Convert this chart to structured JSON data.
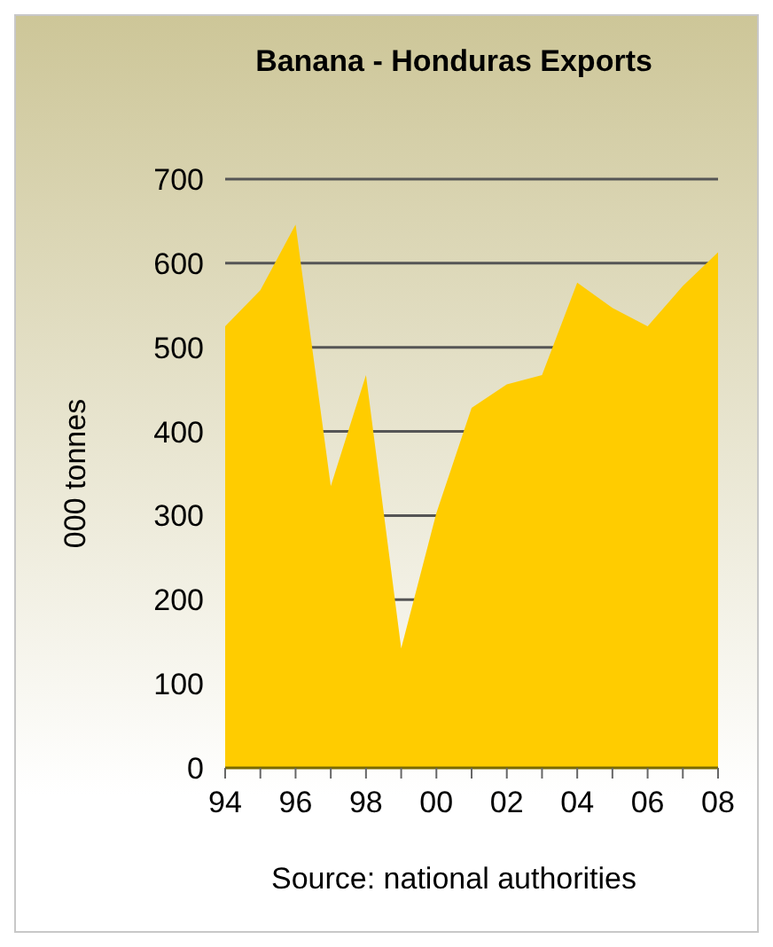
{
  "chart_data": {
    "type": "area",
    "title": "Banana - Honduras Exports",
    "ylabel": "000 tonnes",
    "categories": [
      "94",
      null,
      "96",
      null,
      "98",
      null,
      "00",
      null,
      "02",
      null,
      "04",
      null,
      "06",
      null,
      "08"
    ],
    "values": [
      525,
      568,
      646,
      335,
      467,
      142,
      303,
      428,
      456,
      467,
      577,
      547,
      525,
      573,
      613
    ],
    "color": "#ffcc00",
    "ylim": [
      0,
      700
    ],
    "yticks": [
      0,
      100,
      200,
      300,
      400,
      500,
      600,
      700
    ],
    "grid": "y",
    "annotations": [
      "Source: national authorities"
    ]
  }
}
